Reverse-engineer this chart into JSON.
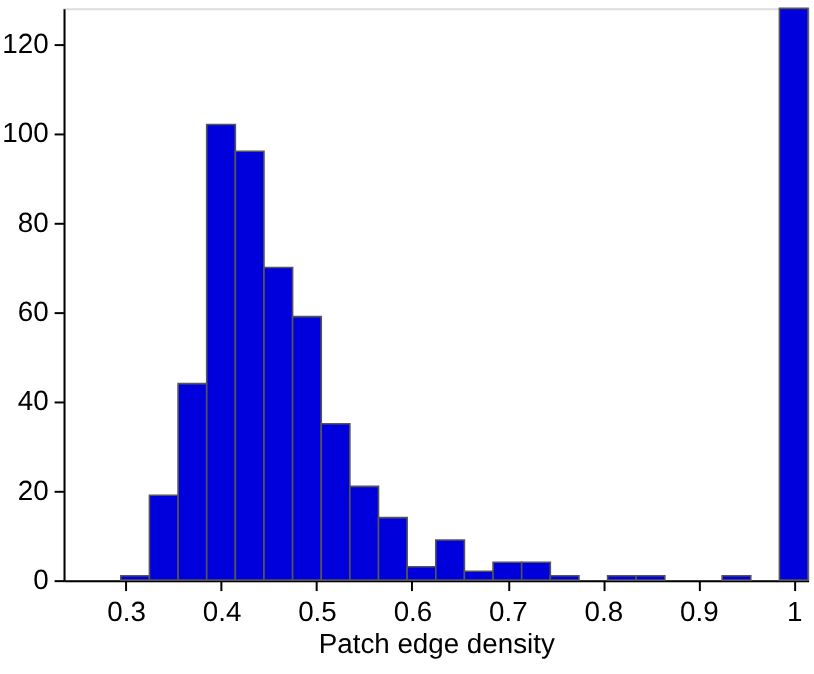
{
  "chart_data": {
    "type": "histogram",
    "xlabel": "Patch edge density",
    "bins": [
      0.295,
      0.325,
      0.355,
      0.385,
      0.415,
      0.445,
      0.475,
      0.505,
      0.535,
      0.565,
      0.595,
      0.625,
      0.655,
      0.685,
      0.715,
      0.745,
      0.775,
      0.805,
      0.835,
      0.865,
      0.895,
      0.925,
      0.955,
      0.985,
      1.015
    ],
    "values": [
      1,
      19,
      44,
      102,
      96,
      70,
      59,
      35,
      21,
      14,
      3,
      9,
      2,
      4,
      4,
      1,
      0,
      1,
      1,
      0,
      0,
      1,
      0,
      128
    ],
    "color": "#0000dd",
    "xlim": [
      0.235,
      1.015
    ],
    "ylim": [
      0,
      128
    ],
    "xticks": [
      0.3,
      0.4,
      0.5,
      0.6,
      0.7,
      0.8,
      0.9,
      1
    ],
    "yticks": [
      0,
      20,
      40,
      60,
      80,
      100,
      120
    ],
    "grid": false
  }
}
